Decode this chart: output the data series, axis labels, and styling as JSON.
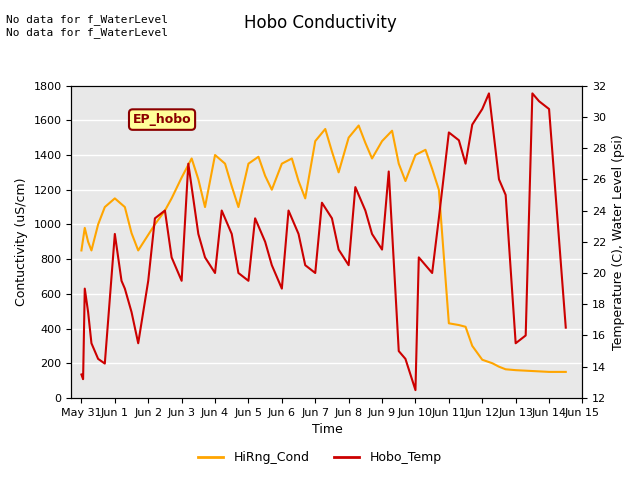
{
  "title": "Hobo Conductivity",
  "xlabel": "Time",
  "ylabel_left": "Contuctivity (uS/cm)",
  "ylabel_right": "Temperature (C), Water Level (psi)",
  "annotation_text": "No data for f_WaterLevel\nNo data for f_WaterLevel",
  "ep_hobo_label": "EP_hobo",
  "legend_entries": [
    "HiRng_Cond",
    "Hobo_Temp"
  ],
  "legend_colors": [
    "#FFA500",
    "#CC0000"
  ],
  "ylim_left": [
    0,
    1800
  ],
  "ylim_right": [
    12,
    32
  ],
  "yticks_left": [
    0,
    200,
    400,
    600,
    800,
    1000,
    1200,
    1400,
    1600,
    1800
  ],
  "yticks_right": [
    12,
    14,
    16,
    18,
    20,
    22,
    24,
    26,
    28,
    30,
    32
  ],
  "background_color": "#ffffff",
  "plot_bg_color": "#e8e8e8",
  "grid_color": "#ffffff",
  "cond_color": "#FFA500",
  "temp_color": "#CC0000",
  "x_tick_labels": [
    "May 31",
    "Jun 1",
    "Jun 2",
    "Jun 3",
    "Jun 4",
    "Jun 5",
    "Jun 6",
    "Jun 7",
    "Jun 8",
    "Jun 9",
    "Jun 10",
    "Jun 11",
    "Jun 12",
    "Jun 13",
    "Jun 14",
    "Jun 15"
  ],
  "cond_data_x": [
    0,
    0.1,
    0.2,
    0.3,
    0.5,
    0.7,
    1.0,
    1.3,
    1.5,
    1.7,
    2.0,
    2.2,
    2.5,
    2.7,
    3.0,
    3.3,
    3.5,
    3.7,
    4.0,
    4.3,
    4.5,
    4.7,
    5.0,
    5.3,
    5.5,
    5.7,
    6.0,
    6.3,
    6.5,
    6.7,
    7.0,
    7.3,
    7.5,
    7.7,
    8.0,
    8.3,
    8.5,
    8.7,
    9.0,
    9.3,
    9.5,
    9.7,
    10.0,
    10.3,
    10.5,
    10.7,
    11.0,
    11.3,
    11.5,
    11.7,
    12.0,
    12.3,
    12.5,
    12.7,
    13.0,
    13.5,
    14.0,
    14.5
  ],
  "cond_data_y": [
    850,
    980,
    900,
    850,
    1000,
    1100,
    1150,
    1100,
    950,
    850,
    940,
    1000,
    1080,
    1150,
    1270,
    1380,
    1260,
    1100,
    1400,
    1350,
    1220,
    1100,
    1350,
    1390,
    1280,
    1200,
    1350,
    1380,
    1250,
    1150,
    1480,
    1550,
    1420,
    1300,
    1500,
    1570,
    1470,
    1380,
    1480,
    1540,
    1350,
    1250,
    1400,
    1430,
    1320,
    1200,
    430,
    420,
    410,
    300,
    220,
    200,
    180,
    165,
    160,
    155,
    150,
    150
  ],
  "temp_data_x": [
    0,
    0.05,
    0.1,
    0.2,
    0.3,
    0.5,
    0.7,
    1.0,
    1.2,
    1.3,
    1.5,
    1.7,
    2.0,
    2.2,
    2.5,
    2.7,
    3.0,
    3.2,
    3.5,
    3.7,
    4.0,
    4.2,
    4.5,
    4.7,
    5.0,
    5.2,
    5.5,
    5.7,
    6.0,
    6.2,
    6.5,
    6.7,
    7.0,
    7.2,
    7.5,
    7.7,
    8.0,
    8.2,
    8.5,
    8.7,
    9.0,
    9.2,
    9.5,
    9.7,
    10.0,
    10.1,
    10.5,
    10.7,
    11.0,
    11.3,
    11.5,
    11.7,
    12.0,
    12.2,
    12.5,
    12.7,
    13.0,
    13.3,
    13.5,
    13.7,
    14.0,
    14.5
  ],
  "temp_data_y": [
    13.5,
    13.2,
    19.0,
    17.5,
    15.5,
    14.5,
    14.2,
    22.5,
    19.5,
    19.0,
    17.5,
    15.5,
    19.5,
    23.5,
    24.0,
    21.0,
    19.5,
    27.0,
    22.5,
    21.0,
    20.0,
    24.0,
    22.5,
    20.0,
    19.5,
    23.5,
    22.0,
    20.5,
    19.0,
    24.0,
    22.5,
    20.5,
    20.0,
    24.5,
    23.5,
    21.5,
    20.5,
    25.5,
    24.0,
    22.5,
    21.5,
    26.5,
    15.0,
    14.5,
    12.5,
    21.0,
    20.0,
    23.5,
    29.0,
    28.5,
    27.0,
    29.5,
    30.5,
    31.5,
    26.0,
    25.0,
    15.5,
    16.0,
    31.5,
    31.0,
    30.5,
    16.5
  ]
}
